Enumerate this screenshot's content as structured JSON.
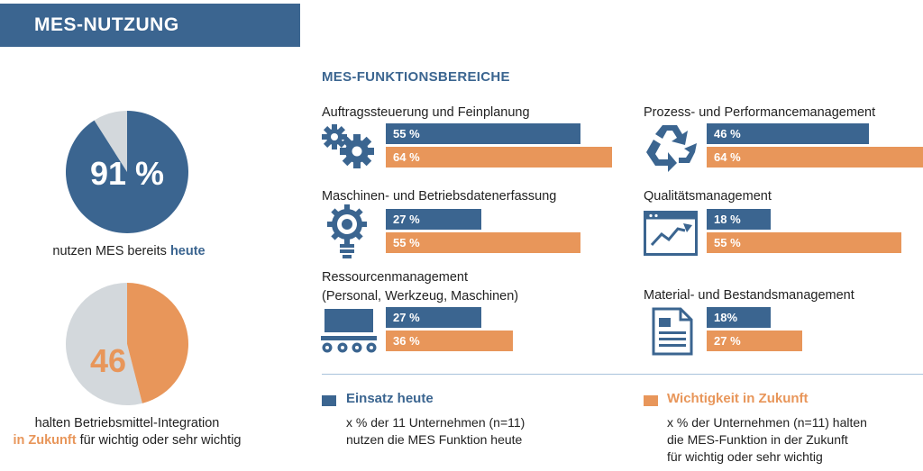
{
  "header": {
    "title": "MES-NUTZUNG"
  },
  "pie_today": {
    "value_label": "91 %",
    "caption_prefix": "nutzen MES bereits",
    "caption_highlight": "heute"
  },
  "pie_future": {
    "value_label": "46 %",
    "caption_line1": "halten Betriebsmittel-Integration",
    "caption_highlight": "in Zukunft",
    "caption_suffix": "für wichtig oder sehr wichtig"
  },
  "section": {
    "title": "MES-FUNKTIONSBEREICHE"
  },
  "categories": [
    {
      "title": "Auftragssteuerung und Feinplanung",
      "today_label": "55 %",
      "future_label": "64 %"
    },
    {
      "title": "Prozess- und Performancemanagement",
      "today_label": "46 %",
      "future_label": "64 %"
    },
    {
      "title": "Maschinen- und Betriebsdatenerfassung",
      "today_label": "27 %",
      "future_label": "55 %"
    },
    {
      "title": "Qualitätsmanagement",
      "today_label": "18 %",
      "future_label": "55 %"
    },
    {
      "title": "Ressourcenmanagement",
      "title_line2": "(Personal, Werkzeug, Maschinen)",
      "today_label": "27 %",
      "future_label": "36 %"
    },
    {
      "title": "Material- und Bestandsmanagement",
      "today_label": "18%",
      "future_label": "27 %"
    }
  ],
  "legend": {
    "today_title": "Einsatz heute",
    "today_line1": "x % der 11 Unternehmen (n=11)",
    "today_line2": "nutzen die MES Funktion heute",
    "future_title": "Wichtigkeit in Zukunft",
    "future_line1": "x % der Unternehmen (n=11) halten",
    "future_line2": "die MES-Funktion in der Zukunft",
    "future_line3": "für wichtig oder sehr wichtig"
  },
  "colors": {
    "today": "#3b6590",
    "future": "#e8965a",
    "remainder": "#d3d8dc"
  },
  "chart_data": [
    {
      "type": "pie",
      "categories": [
        "nutzen MES bereits heute",
        "Rest"
      ],
      "values": [
        91,
        9
      ]
    },
    {
      "type": "pie",
      "categories": [
        "halten Betriebsmittel-Integration in Zukunft für wichtig oder sehr wichtig",
        "Rest"
      ],
      "values": [
        46,
        54
      ]
    },
    {
      "type": "bar",
      "title": "MES-FUNKTIONSBEREICHE",
      "categories": [
        "Auftragssteuerung und Feinplanung",
        "Prozess- und Performancemanagement",
        "Maschinen- und Betriebsdatenerfassung",
        "Qualitätsmanagement",
        "Ressourcenmanagement (Personal, Werkzeug, Maschinen)",
        "Material- und Bestandsmanagement"
      ],
      "series": [
        {
          "name": "Einsatz heute",
          "values": [
            55,
            46,
            27,
            18,
            27,
            18
          ]
        },
        {
          "name": "Wichtigkeit in Zukunft",
          "values": [
            64,
            64,
            55,
            55,
            36,
            27
          ]
        }
      ],
      "ylim": [
        0,
        64
      ]
    }
  ]
}
